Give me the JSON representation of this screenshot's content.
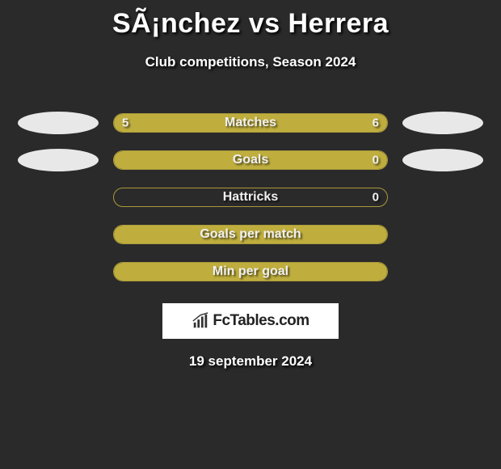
{
  "title": "SÃ¡nchez vs Herrera",
  "subtitle": "Club competitions, Season 2024",
  "date": "19 september 2024",
  "logo_text": "FcTables.com",
  "colors": {
    "background": "#2a2a2a",
    "bar_fill": "#bfae3e",
    "bar_border": "#a99a3a",
    "ellipse": "#e8e8e8",
    "text": "#ffffff"
  },
  "rows": [
    {
      "label": "Matches",
      "left_value": "5",
      "right_value": "6",
      "left_pct": 45,
      "right_pct": 55,
      "show_left_ellipse": true,
      "show_right_ellipse": true,
      "full_fill": false
    },
    {
      "label": "Goals",
      "left_value": "",
      "right_value": "0",
      "left_pct": 0,
      "right_pct": 0,
      "show_left_ellipse": true,
      "show_right_ellipse": true,
      "full_fill": true
    },
    {
      "label": "Hattricks",
      "left_value": "",
      "right_value": "0",
      "left_pct": 0,
      "right_pct": 0,
      "show_left_ellipse": false,
      "show_right_ellipse": false,
      "full_fill": false
    },
    {
      "label": "Goals per match",
      "left_value": "",
      "right_value": "",
      "left_pct": 0,
      "right_pct": 0,
      "show_left_ellipse": false,
      "show_right_ellipse": false,
      "full_fill": true
    },
    {
      "label": "Min per goal",
      "left_value": "",
      "right_value": "",
      "left_pct": 0,
      "right_pct": 0,
      "show_left_ellipse": false,
      "show_right_ellipse": false,
      "full_fill": true
    }
  ]
}
